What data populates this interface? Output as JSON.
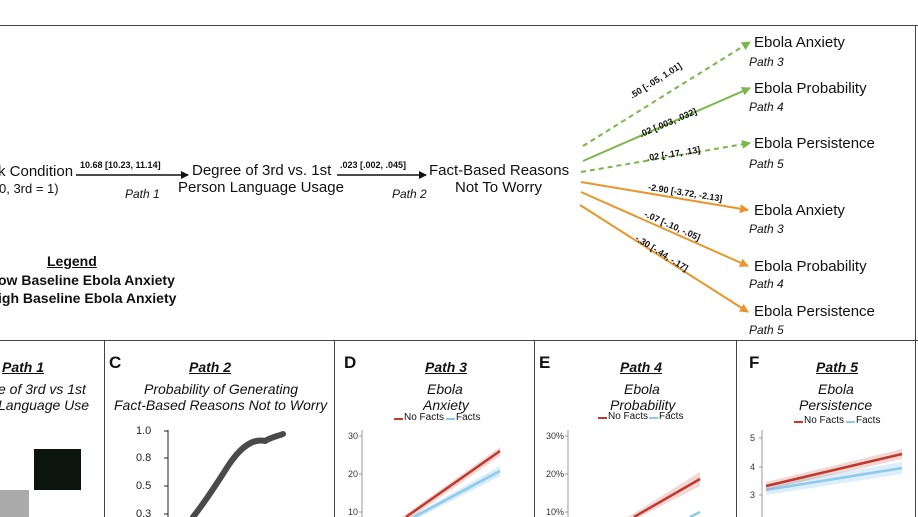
{
  "diagram": {
    "nodes": {
      "condition": {
        "label": "k Condition",
        "sub": "0, 3rd = 1)"
      },
      "degree": {
        "line1": "Degree of 3rd vs. 1st",
        "line2": "Person Language Usage"
      },
      "fact": {
        "line1": "Fact-Based Reasons",
        "line2": "Not To Worry"
      }
    },
    "edges": {
      "path1": {
        "coef": "10.68  [10.23, 11.14]",
        "label": "Path 1"
      },
      "path2": {
        "coef": ".023  [.002, .045]",
        "label": "Path 2"
      }
    },
    "outcomes": [
      {
        "name": "Ebola Anxiety",
        "path": "Path 3",
        "coef": ".50  [-.05, 1.01]",
        "group": "low",
        "dashed": true
      },
      {
        "name": "Ebola Probability",
        "path": "Path 4",
        "coef": ".02 [.003, .032]",
        "group": "low",
        "dashed": false
      },
      {
        "name": "Ebola Persistence",
        "path": "Path 5",
        "coef": ".02  [-.17, .13]",
        "group": "low",
        "dashed": true
      },
      {
        "name": "Ebola Anxiety",
        "path": "Path 3",
        "coef": "-2.90  [-3.72, -2.13]",
        "group": "high",
        "dashed": false
      },
      {
        "name": "Ebola Probability",
        "path": "Path 4",
        "coef": "-.07  [-.10, -.05]",
        "group": "high",
        "dashed": false
      },
      {
        "name": "Ebola Persistence",
        "path": "Path 5",
        "coef": "-.30  [-.44, -.17]",
        "group": "high",
        "dashed": false
      }
    ],
    "legend": {
      "title": "Legend",
      "low": "ow Baseline Ebola Anxiety",
      "high": "igh Baseline Ebola Anxiety"
    },
    "colors": {
      "low": "#7ab648",
      "high": "#e8962a",
      "noFacts": "#c0392b",
      "facts": "#8ec9ee"
    }
  },
  "panels": {
    "B": {
      "path": "Path 1",
      "title1": "e of 3rd vs 1st",
      "title2": "Language Use"
    },
    "C": {
      "letter": "C",
      "path": "Path 2",
      "title1": "Probability of Generating",
      "title2": "Fact-Based Reasons Not to Worry",
      "yticks": [
        "1.0",
        "0.8",
        "0.5",
        "0.3"
      ]
    },
    "D": {
      "letter": "D",
      "path": "Path 3",
      "title1": "Ebola",
      "title2": "Anxiety",
      "yticks": [
        "30",
        "20",
        "10"
      ]
    },
    "E": {
      "letter": "E",
      "path": "Path 4",
      "title1": "Ebola",
      "title2": "Probability",
      "yticks": [
        "30%",
        "20%",
        "10%"
      ]
    },
    "F": {
      "letter": "F",
      "path": "Path 5",
      "title1": "Ebola",
      "title2": "Persistence",
      "yticks": [
        "5",
        "4",
        "3"
      ]
    },
    "legend": {
      "noFacts": "No Facts",
      "facts": "Facts"
    }
  }
}
